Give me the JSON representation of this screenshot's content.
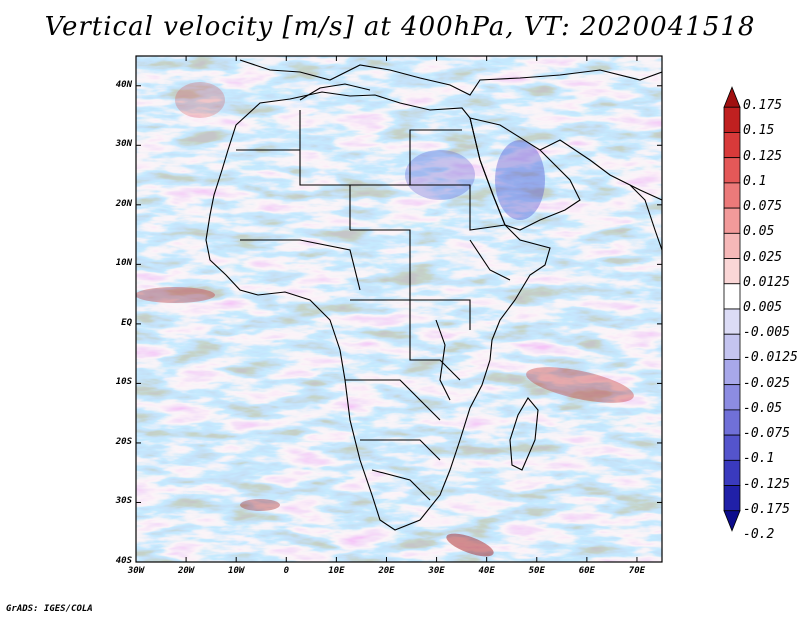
{
  "title": "Vertical velocity [m/s] at 400hPa, VT: 2020041518",
  "credit": "GrADS: IGES/COLA",
  "map": {
    "region": "Africa",
    "variable": "Vertical velocity",
    "units": "m/s",
    "level": "400hPa",
    "valid_time": "2020041518",
    "lat_labels": [
      "40N",
      "30N",
      "20N",
      "10N",
      "EQ",
      "10S",
      "20S",
      "30S",
      "40S"
    ],
    "lon_labels": [
      "30W",
      "20W",
      "10W",
      "0",
      "10E",
      "20E",
      "30E",
      "40E",
      "50E",
      "60E",
      "70E"
    ],
    "lat_values": [
      40,
      30,
      20,
      10,
      0,
      -10,
      -20,
      -30,
      -40
    ],
    "lon_values": [
      -30,
      -20,
      -10,
      0,
      10,
      20,
      30,
      40,
      50,
      60,
      70
    ],
    "lat_range": [
      -40,
      45
    ],
    "lon_range": [
      -30,
      75
    ]
  },
  "colorbar": {
    "levels": [
      "0.175",
      "0.15",
      "0.125",
      "0.1",
      "0.075",
      "0.05",
      "0.025",
      "0.0125",
      "0.005",
      "-0.005",
      "-0.0125",
      "-0.025",
      "-0.05",
      "-0.075",
      "-0.1",
      "-0.125",
      "-0.175",
      "-0.2"
    ],
    "colors": [
      "#a01010",
      "#c02020",
      "#d83a3a",
      "#e45858",
      "#ec7a7a",
      "#f29a9a",
      "#f6b8b8",
      "#fad6d6",
      "#ffffff",
      "#dcdcf6",
      "#c4c4f0",
      "#a8a8ea",
      "#8c8ce2",
      "#7070d8",
      "#5454cc",
      "#3a3abe",
      "#2020a8",
      "#0c0c8c"
    ]
  }
}
